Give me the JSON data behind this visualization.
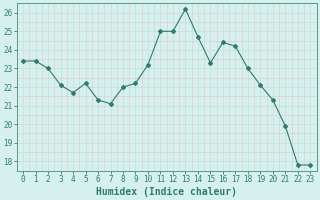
{
  "x": [
    0,
    1,
    2,
    3,
    4,
    5,
    6,
    7,
    8,
    9,
    10,
    11,
    12,
    13,
    14,
    15,
    16,
    17,
    18,
    19,
    20,
    21,
    22,
    23
  ],
  "y": [
    23.4,
    23.4,
    23.0,
    22.1,
    21.7,
    22.2,
    21.3,
    21.1,
    22.0,
    22.2,
    23.2,
    25.0,
    25.0,
    26.2,
    24.7,
    23.3,
    24.4,
    24.2,
    23.0,
    22.1,
    21.3,
    19.9,
    17.8,
    17.8
  ],
  "line_color": "#2e7d6e",
  "marker": "D",
  "marker_size": 2,
  "bg_color": "#d6f0ee",
  "grid_major_color": "#c8ddd8",
  "grid_minor_color": "#e0c8c8",
  "xlabel": "Humidex (Indice chaleur)",
  "xlim": [
    -0.5,
    23.5
  ],
  "ylim": [
    17.5,
    26.5
  ],
  "yticks": [
    18,
    19,
    20,
    21,
    22,
    23,
    24,
    25,
    26
  ],
  "xticks": [
    0,
    1,
    2,
    3,
    4,
    5,
    6,
    7,
    8,
    9,
    10,
    11,
    12,
    13,
    14,
    15,
    16,
    17,
    18,
    19,
    20,
    21,
    22,
    23
  ],
  "tick_label_size": 5.5,
  "xlabel_size": 7,
  "tick_color": "#2e7d6e",
  "axis_color": "#5a9a8a",
  "line_width": 0.8
}
